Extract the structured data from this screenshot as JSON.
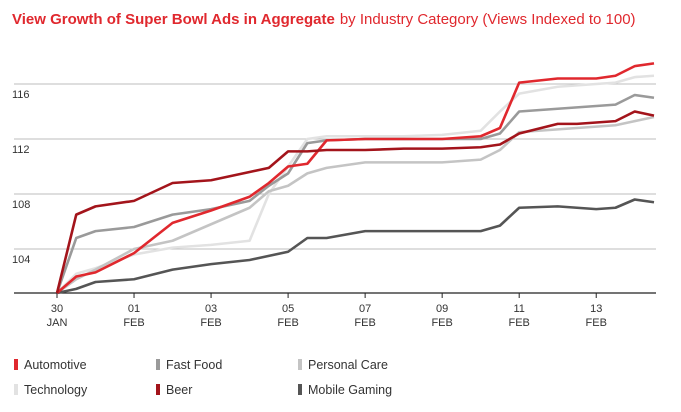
{
  "chart_data": {
    "type": "line",
    "title": "View Growth of Super Bowl Ads in Aggregate",
    "subtitle": "by Industry Category (Views Indexed to 100)",
    "x": [
      0,
      0.5,
      1,
      2,
      3,
      4,
      5,
      5.5,
      6,
      6.5,
      7,
      8,
      9,
      10,
      11,
      11.5,
      12,
      13,
      13.5,
      14,
      14.5,
      15,
      15.5
    ],
    "xlim": [
      0,
      15.5
    ],
    "xticks": [
      {
        "value": 0,
        "label": [
          "30",
          "JAN"
        ]
      },
      {
        "value": 2,
        "label": [
          "01",
          "FEB"
        ]
      },
      {
        "value": 4,
        "label": [
          "03",
          "FEB"
        ]
      },
      {
        "value": 6,
        "label": [
          "05",
          "FEB"
        ]
      },
      {
        "value": 8,
        "label": [
          "07",
          "FEB"
        ]
      },
      {
        "value": 10,
        "label": [
          "09",
          "FEB"
        ]
      },
      {
        "value": 12,
        "label": [
          "11",
          "FEB"
        ]
      },
      {
        "value": 14,
        "label": [
          "13",
          "FEB"
        ]
      }
    ],
    "ylim": [
      100.8,
      117.8
    ],
    "yticks": [
      104,
      108,
      112,
      116
    ],
    "grid": true,
    "series": [
      {
        "name": "Automotive",
        "color": "#e0282e",
        "values": [
          100.8,
          102.0,
          102.3,
          103.7,
          105.9,
          106.8,
          107.8,
          108.8,
          110.0,
          110.2,
          111.9,
          112.0,
          112.0,
          112.0,
          112.2,
          112.8,
          116.1,
          116.4,
          116.4,
          116.4,
          116.6,
          117.3,
          117.5
        ]
      },
      {
        "name": "Fast Food",
        "color": "#9a9a9a",
        "values": [
          100.8,
          104.8,
          105.3,
          105.6,
          106.5,
          106.9,
          107.5,
          108.6,
          109.5,
          111.7,
          111.9,
          112.0,
          112.0,
          112.0,
          112.0,
          112.4,
          114.0,
          114.2,
          114.3,
          114.4,
          114.5,
          115.2,
          115.0
        ]
      },
      {
        "name": "Personal Care",
        "color": "#c4c4c4",
        "values": [
          100.8,
          101.8,
          102.5,
          104.0,
          104.6,
          105.8,
          107.0,
          108.2,
          108.6,
          109.5,
          109.9,
          110.3,
          110.3,
          110.3,
          110.5,
          111.2,
          112.5,
          112.7,
          112.8,
          112.9,
          113.0,
          113.3,
          113.6
        ]
      },
      {
        "name": "Technology",
        "color": "#e2e2e2",
        "values": [
          100.8,
          102.2,
          102.6,
          103.6,
          104.1,
          104.3,
          104.6,
          108.0,
          110.0,
          112.0,
          112.2,
          112.2,
          112.2,
          112.3,
          112.6,
          114.0,
          115.3,
          115.8,
          115.9,
          116.0,
          116.1,
          116.5,
          116.6
        ]
      },
      {
        "name": "Beer",
        "color": "#a3141b",
        "values": [
          100.8,
          106.5,
          107.1,
          107.5,
          108.8,
          109.0,
          109.6,
          109.9,
          111.1,
          111.1,
          111.2,
          111.2,
          111.3,
          111.3,
          111.4,
          111.6,
          112.4,
          113.1,
          113.1,
          113.2,
          113.3,
          114.0,
          113.7
        ]
      },
      {
        "name": "Mobile Gaming",
        "color": "#555555",
        "values": [
          100.8,
          101.1,
          101.6,
          101.8,
          102.5,
          102.9,
          103.2,
          103.5,
          103.8,
          104.8,
          104.8,
          105.3,
          105.3,
          105.3,
          105.3,
          105.7,
          107.0,
          107.1,
          107.0,
          106.9,
          107.0,
          107.6,
          107.4
        ]
      }
    ]
  }
}
